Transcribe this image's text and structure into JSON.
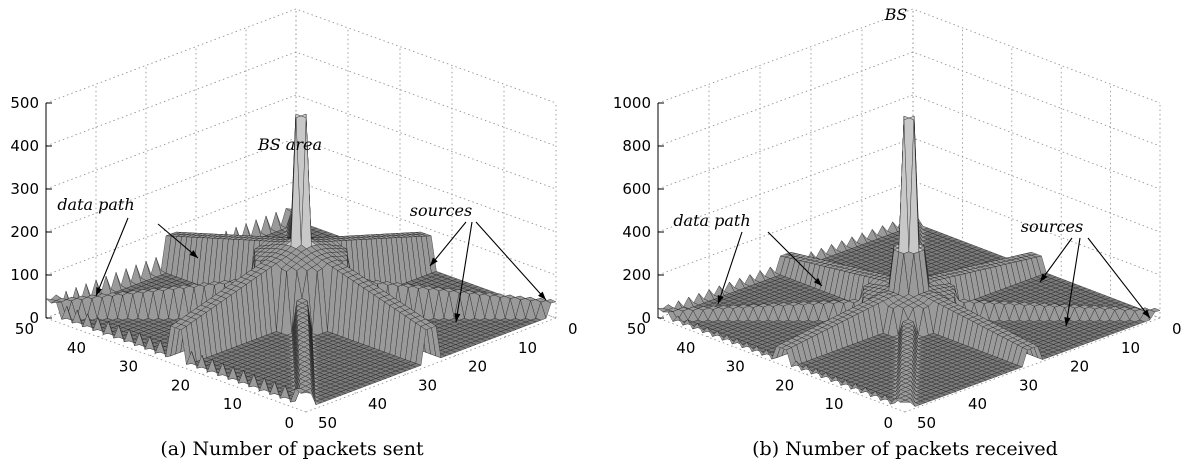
{
  "chart_data": [
    {
      "type": "surface",
      "caption": "(a) Number of packets sent",
      "zlim": [
        0,
        500
      ],
      "z_ticks": [
        0,
        100,
        200,
        300,
        400,
        500
      ],
      "x_ticks": [
        0,
        10,
        20,
        30,
        40,
        50
      ],
      "y_ticks": [
        0,
        10,
        20,
        30,
        40,
        50
      ],
      "grid": true,
      "peak": {
        "x": 25,
        "y": 25,
        "z": 470
      },
      "data_path_level": 150,
      "sources": [
        {
          "x": 0,
          "y": 0
        },
        {
          "x": 50,
          "y": 0
        },
        {
          "x": 0,
          "y": 50
        },
        {
          "x": 50,
          "y": 50
        }
      ],
      "annotations": [
        {
          "text": "BS area",
          "target": "peak"
        },
        {
          "text": "data path",
          "target": "path"
        },
        {
          "text": "sources",
          "target": "sources"
        }
      ]
    },
    {
      "type": "surface",
      "caption": "(b) Number of packets received",
      "zlim": [
        0,
        1000
      ],
      "z_ticks": [
        0,
        200,
        400,
        600,
        800,
        1000
      ],
      "x_ticks": [
        0,
        10,
        20,
        30,
        40,
        50
      ],
      "y_ticks": [
        0,
        10,
        20,
        30,
        40,
        50
      ],
      "grid": true,
      "peak": {
        "x": 25,
        "y": 25,
        "z": 930
      },
      "data_path_level": 130,
      "sources": [
        {
          "x": 0,
          "y": 0
        },
        {
          "x": 50,
          "y": 0
        },
        {
          "x": 0,
          "y": 50
        },
        {
          "x": 50,
          "y": 50
        }
      ],
      "annotations": [
        {
          "text": "BS",
          "target": "peak"
        },
        {
          "text": "data path",
          "target": "path"
        },
        {
          "text": "sources",
          "target": "sources"
        }
      ]
    }
  ]
}
